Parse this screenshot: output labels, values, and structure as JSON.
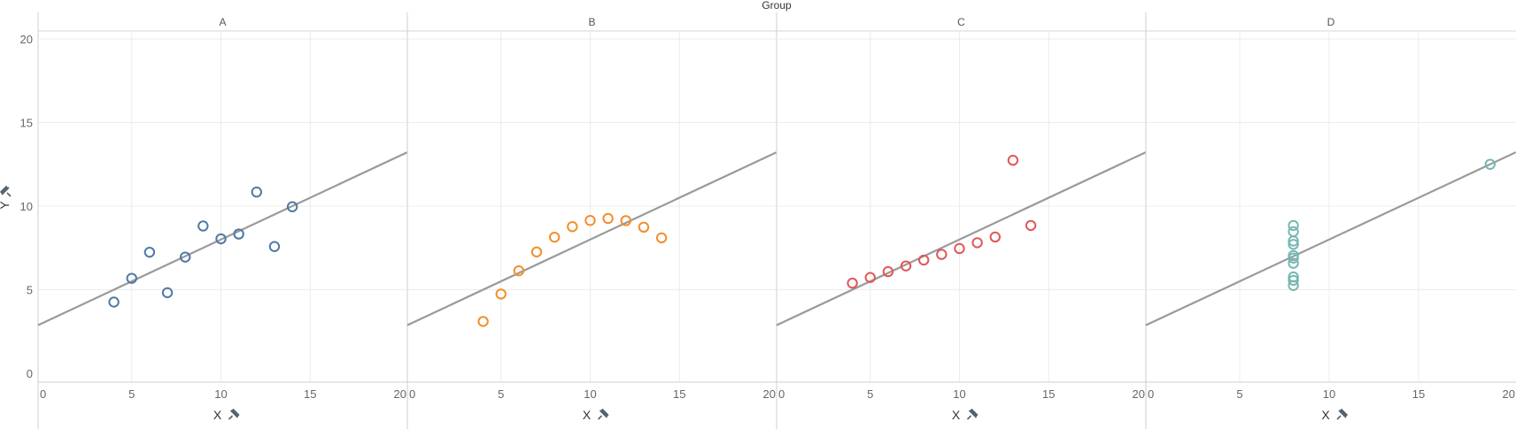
{
  "chart_data": {
    "type": "scatter",
    "column_header": "Group",
    "xlabel": "X",
    "ylabel": "Y",
    "xlim": [
      0,
      20
    ],
    "ylim": [
      0,
      20
    ],
    "xticks": [
      0,
      5,
      10,
      15,
      20
    ],
    "yticks": [
      0,
      5,
      10,
      15,
      20
    ],
    "grid": true,
    "trend_line": {
      "slope": 0.5,
      "intercept": 3.0
    },
    "line_color": "#9a9a9a",
    "panels": [
      {
        "name": "A",
        "color": "#4e79a7",
        "x": [
          10,
          8,
          13,
          9,
          11,
          14,
          6,
          4,
          12,
          7,
          5
        ],
        "y": [
          8.04,
          6.95,
          7.58,
          8.81,
          8.33,
          9.96,
          7.24,
          4.26,
          10.84,
          4.82,
          5.68
        ]
      },
      {
        "name": "B",
        "color": "#f28e2b",
        "x": [
          10,
          8,
          13,
          9,
          11,
          14,
          6,
          4,
          12,
          7,
          5
        ],
        "y": [
          9.14,
          8.14,
          8.74,
          8.77,
          9.26,
          8.1,
          6.13,
          3.1,
          9.13,
          7.26,
          4.74
        ]
      },
      {
        "name": "C",
        "color": "#e15759",
        "x": [
          10,
          8,
          13,
          9,
          11,
          14,
          6,
          4,
          12,
          7,
          5
        ],
        "y": [
          7.46,
          6.77,
          12.74,
          7.11,
          7.81,
          8.84,
          6.08,
          5.39,
          8.15,
          6.42,
          5.73
        ]
      },
      {
        "name": "D",
        "color": "#76b7b2",
        "x": [
          8,
          8,
          8,
          8,
          8,
          8,
          8,
          19,
          8,
          8,
          8
        ],
        "y": [
          6.58,
          5.76,
          7.71,
          8.84,
          8.47,
          7.04,
          5.25,
          12.5,
          5.56,
          7.91,
          6.89
        ]
      }
    ]
  }
}
